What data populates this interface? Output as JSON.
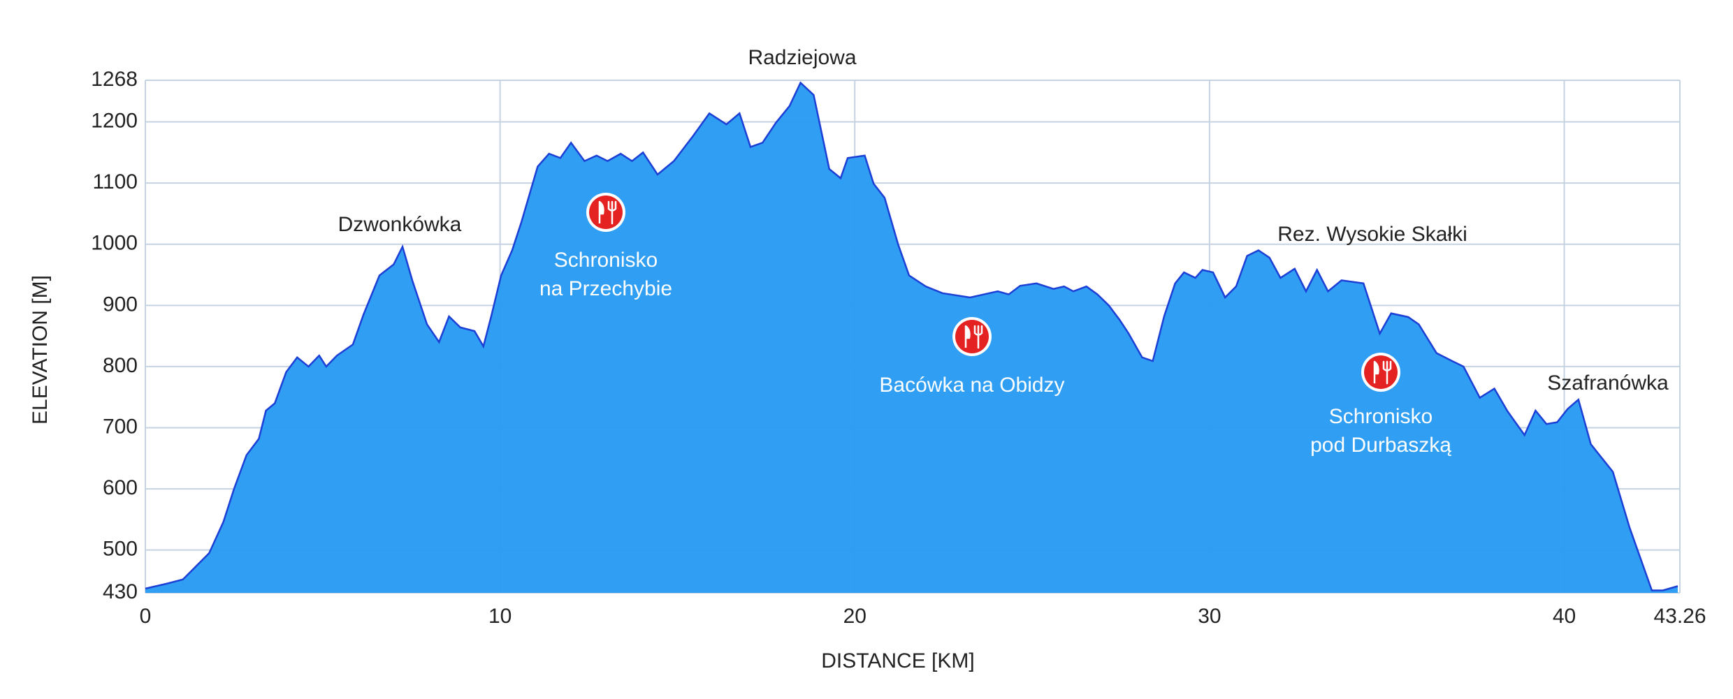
{
  "chart_data": {
    "type": "area",
    "xlabel": "DISTANCE [KM]",
    "ylabel": "ELEVATION [M]",
    "x": [
      0,
      0.6,
      1.06,
      1.8,
      2.2,
      2.5,
      2.85,
      3.2,
      3.4,
      3.65,
      3.97,
      4.28,
      4.6,
      4.9,
      5.1,
      5.4,
      5.85,
      6.15,
      6.6,
      7.0,
      7.25,
      7.53,
      7.94,
      8.28,
      8.56,
      8.88,
      9.28,
      9.53,
      9.75,
      10.03,
      10.34,
      10.6,
      11.06,
      11.38,
      11.7,
      12.0,
      12.38,
      12.72,
      13.03,
      13.4,
      13.72,
      14.03,
      14.44,
      14.9,
      15.44,
      15.9,
      16.38,
      16.75,
      17.06,
      17.4,
      17.78,
      18.16,
      18.47,
      18.84,
      19.28,
      19.6,
      19.8,
      20.28,
      20.53,
      20.84,
      21.22,
      21.53,
      22.0,
      22.47,
      23.25,
      24.03,
      24.34,
      24.66,
      25.12,
      25.6,
      25.9,
      26.16,
      26.53,
      26.84,
      27.16,
      27.47,
      27.72,
      28.1,
      28.4,
      28.72,
      29.03,
      29.28,
      29.6,
      29.8,
      30.1,
      30.44,
      30.75,
      31.06,
      31.38,
      31.69,
      32.0,
      32.4,
      32.72,
      33.03,
      33.34,
      33.72,
      34.34,
      34.8,
      35.12,
      35.6,
      35.9,
      36.4,
      36.84,
      37.16,
      37.62,
      38.03,
      38.4,
      38.88,
      39.19,
      39.5,
      39.8,
      40.1,
      40.4,
      40.75,
      41.37,
      41.84,
      42.47,
      42.78,
      43.2
    ],
    "values": [
      437,
      445,
      452,
      495,
      546,
      600,
      655,
      682,
      728,
      740,
      791,
      815,
      800,
      818,
      800,
      818,
      836,
      885,
      949,
      967,
      996,
      940,
      869,
      840,
      882,
      864,
      858,
      833,
      882,
      949,
      990,
      1036,
      1127,
      1148,
      1141,
      1166,
      1136,
      1145,
      1136,
      1148,
      1136,
      1150,
      1114,
      1136,
      1177,
      1214,
      1196,
      1214,
      1159,
      1166,
      1199,
      1226,
      1264,
      1244,
      1123,
      1108,
      1141,
      1145,
      1099,
      1076,
      1000,
      949,
      931,
      920,
      913,
      923,
      918,
      932,
      936,
      927,
      931,
      923,
      931,
      918,
      900,
      876,
      854,
      815,
      809,
      882,
      936,
      954,
      945,
      958,
      954,
      913,
      931,
      981,
      990,
      978,
      945,
      960,
      923,
      958,
      923,
      941,
      936,
      854,
      887,
      881,
      869,
      822,
      809,
      800,
      749,
      764,
      727,
      688,
      728,
      706,
      709,
      731,
      746,
      673,
      628,
      537,
      434,
      434,
      441
    ],
    "color": "#2b9cf3",
    "line_color": "#1c3fd6",
    "xlim": [
      0,
      43.26
    ],
    "xticks": [
      0,
      10,
      20,
      30,
      40,
      43.26
    ],
    "ylim": [
      430,
      1268
    ],
    "yticks": [
      430,
      500,
      600,
      700,
      800,
      900,
      1000,
      1100,
      1200,
      1268
    ],
    "grid": true,
    "peaks": [
      "Radziejowa",
      "Dzwonkówka",
      "Rez. Wysokie Skałki",
      "Szafranówka"
    ],
    "huts": [
      [
        "Schronisko",
        "na Przechybie"
      ],
      [
        "Bacówka na Obidzy"
      ],
      [
        "Schronisko",
        "pod Durbaszką"
      ]
    ]
  }
}
